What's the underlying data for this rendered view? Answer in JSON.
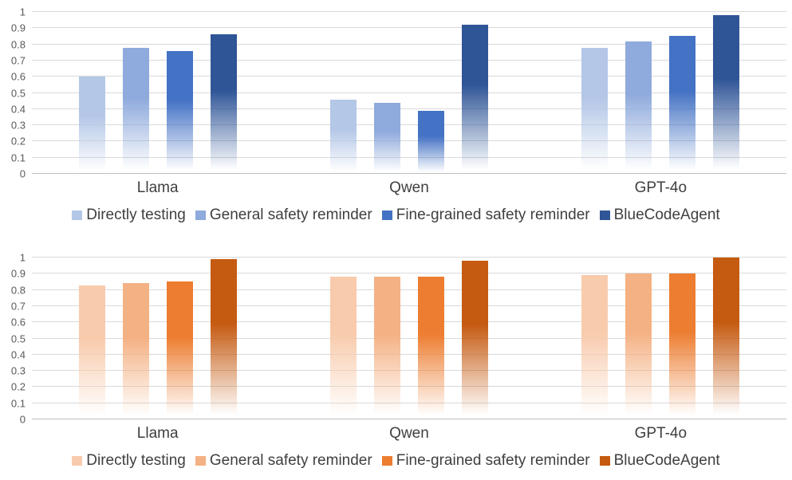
{
  "chart_data": [
    {
      "type": "bar",
      "title": "",
      "xlabel": "",
      "ylabel": "",
      "ylim": [
        0,
        1
      ],
      "ytick_labels": [
        "0",
        "0.1",
        "0.2",
        "0.3",
        "0.4",
        "0.5",
        "0.6",
        "0.7",
        "0.8",
        "0.9",
        "1"
      ],
      "grid": true,
      "legend_position": "bottom",
      "categories": [
        "Llama",
        "Qwen",
        "GPT-4o"
      ],
      "series": [
        {
          "name": "Directly testing",
          "color": "#B4C7E7",
          "values": [
            0.6,
            0.46,
            0.78
          ]
        },
        {
          "name": "General safety reminder",
          "color": "#8FAADC",
          "values": [
            0.78,
            0.44,
            0.82
          ]
        },
        {
          "name": "Fine-grained safety reminder",
          "color": "#4472C4",
          "values": [
            0.76,
            0.39,
            0.85
          ]
        },
        {
          "name": "BlueCodeAgent",
          "color": "#2F5597",
          "values": [
            0.86,
            0.92,
            0.98
          ]
        }
      ]
    },
    {
      "type": "bar",
      "title": "",
      "xlabel": "",
      "ylabel": "",
      "ylim": [
        0,
        1
      ],
      "ytick_labels": [
        "0",
        "0.1",
        "0.2",
        "0.3",
        "0.4",
        "0.5",
        "0.6",
        "0.7",
        "0.8",
        "0.9",
        "1"
      ],
      "grid": true,
      "legend_position": "bottom",
      "categories": [
        "Llama",
        "Qwen",
        "GPT-4o"
      ],
      "series": [
        {
          "name": "Directly testing",
          "color": "#F8CBAD",
          "values": [
            0.83,
            0.88,
            0.89
          ]
        },
        {
          "name": "General safety reminder",
          "color": "#F4B183",
          "values": [
            0.84,
            0.88,
            0.9
          ]
        },
        {
          "name": "Fine-grained safety reminder",
          "color": "#ED7D31",
          "values": [
            0.85,
            0.88,
            0.9
          ]
        },
        {
          "name": "BlueCodeAgent",
          "color": "#C55A11",
          "values": [
            0.99,
            0.98,
            1.0
          ]
        }
      ]
    }
  ],
  "style": {
    "gridline_color": "#D9D9D9",
    "axis_line_color": "#BFBFBF",
    "label_color": "#3F3F3F",
    "tick_color": "#595959",
    "background": "#FFFFFF"
  }
}
